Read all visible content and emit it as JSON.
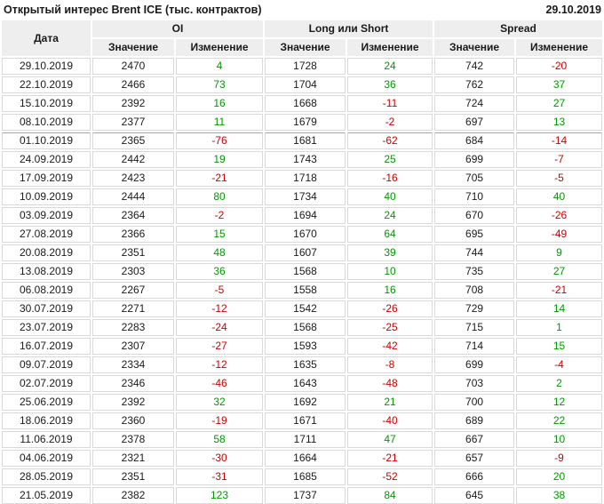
{
  "chart_data": {
    "type": "table",
    "title": "Открытый интерес Brent ICE (тыс. контрактов)",
    "report_date": "29.10.2019",
    "columns": {
      "date_label": "Дата",
      "groups": [
        {
          "label": "OI"
        },
        {
          "label": "Long или Short"
        },
        {
          "label": "Spread"
        }
      ],
      "value_label": "Значение",
      "change_label": "Изменение"
    },
    "colors": {
      "positive_change": "#009900",
      "negative_change": "#cc0000",
      "header_bg": "#eeeeee",
      "grid_border": "#d9d9d9"
    },
    "rows": [
      {
        "date": "29.10.2019",
        "oi_value": 2470,
        "oi_change": 4,
        "long_short_value": 1728,
        "long_short_change": 24,
        "spread_value": 742,
        "spread_change": -20
      },
      {
        "date": "22.10.2019",
        "oi_value": 2466,
        "oi_change": 73,
        "long_short_value": 1704,
        "long_short_change": 36,
        "spread_value": 762,
        "spread_change": 37
      },
      {
        "date": "15.10.2019",
        "oi_value": 2392,
        "oi_change": 16,
        "long_short_value": 1668,
        "long_short_change": -11,
        "spread_value": 724,
        "spread_change": 27
      },
      {
        "date": "08.10.2019",
        "oi_value": 2377,
        "oi_change": 11,
        "long_short_value": 1679,
        "long_short_change": -2,
        "spread_value": 697,
        "spread_change": 13
      },
      {
        "date": "01.10.2019",
        "oi_value": 2365,
        "oi_change": -76,
        "long_short_value": 1681,
        "long_short_change": -62,
        "spread_value": 684,
        "spread_change": -14,
        "quarter_divider": true
      },
      {
        "date": "24.09.2019",
        "oi_value": 2442,
        "oi_change": 19,
        "long_short_value": 1743,
        "long_short_change": 25,
        "spread_value": 699,
        "spread_change": -7
      },
      {
        "date": "17.09.2019",
        "oi_value": 2423,
        "oi_change": -21,
        "long_short_value": 1718,
        "long_short_change": -16,
        "spread_value": 705,
        "spread_change": -5
      },
      {
        "date": "10.09.2019",
        "oi_value": 2444,
        "oi_change": 80,
        "long_short_value": 1734,
        "long_short_change": 40,
        "spread_value": 710,
        "spread_change": 40
      },
      {
        "date": "03.09.2019",
        "oi_value": 2364,
        "oi_change": -2,
        "long_short_value": 1694,
        "long_short_change": 24,
        "spread_value": 670,
        "spread_change": -26
      },
      {
        "date": "27.08.2019",
        "oi_value": 2366,
        "oi_change": 15,
        "long_short_value": 1670,
        "long_short_change": 64,
        "spread_value": 695,
        "spread_change": -49
      },
      {
        "date": "20.08.2019",
        "oi_value": 2351,
        "oi_change": 48,
        "long_short_value": 1607,
        "long_short_change": 39,
        "spread_value": 744,
        "spread_change": 9
      },
      {
        "date": "13.08.2019",
        "oi_value": 2303,
        "oi_change": 36,
        "long_short_value": 1568,
        "long_short_change": 10,
        "spread_value": 735,
        "spread_change": 27
      },
      {
        "date": "06.08.2019",
        "oi_value": 2267,
        "oi_change": -5,
        "long_short_value": 1558,
        "long_short_change": 16,
        "spread_value": 708,
        "spread_change": -21
      },
      {
        "date": "30.07.2019",
        "oi_value": 2271,
        "oi_change": -12,
        "long_short_value": 1542,
        "long_short_change": -26,
        "spread_value": 729,
        "spread_change": 14
      },
      {
        "date": "23.07.2019",
        "oi_value": 2283,
        "oi_change": -24,
        "long_short_value": 1568,
        "long_short_change": -25,
        "spread_value": 715,
        "spread_change": 1
      },
      {
        "date": "16.07.2019",
        "oi_value": 2307,
        "oi_change": -27,
        "long_short_value": 1593,
        "long_short_change": -42,
        "spread_value": 714,
        "spread_change": 15
      },
      {
        "date": "09.07.2019",
        "oi_value": 2334,
        "oi_change": -12,
        "long_short_value": 1635,
        "long_short_change": -8,
        "spread_value": 699,
        "spread_change": -4
      },
      {
        "date": "02.07.2019",
        "oi_value": 2346,
        "oi_change": -46,
        "long_short_value": 1643,
        "long_short_change": -48,
        "spread_value": 703,
        "spread_change": 2
      },
      {
        "date": "25.06.2019",
        "oi_value": 2392,
        "oi_change": 32,
        "long_short_value": 1692,
        "long_short_change": 21,
        "spread_value": 700,
        "spread_change": 12
      },
      {
        "date": "18.06.2019",
        "oi_value": 2360,
        "oi_change": -19,
        "long_short_value": 1671,
        "long_short_change": -40,
        "spread_value": 689,
        "spread_change": 22
      },
      {
        "date": "11.06.2019",
        "oi_value": 2378,
        "oi_change": 58,
        "long_short_value": 1711,
        "long_short_change": 47,
        "spread_value": 667,
        "spread_change": 10
      },
      {
        "date": "04.06.2019",
        "oi_value": 2321,
        "oi_change": -30,
        "long_short_value": 1664,
        "long_short_change": -21,
        "spread_value": 657,
        "spread_change": -9
      },
      {
        "date": "28.05.2019",
        "oi_value": 2351,
        "oi_change": -31,
        "long_short_value": 1685,
        "long_short_change": -52,
        "spread_value": 666,
        "spread_change": 20
      },
      {
        "date": "21.05.2019",
        "oi_value": 2382,
        "oi_change": 123,
        "long_short_value": 1737,
        "long_short_change": 84,
        "spread_value": 645,
        "spread_change": 38
      }
    ]
  }
}
